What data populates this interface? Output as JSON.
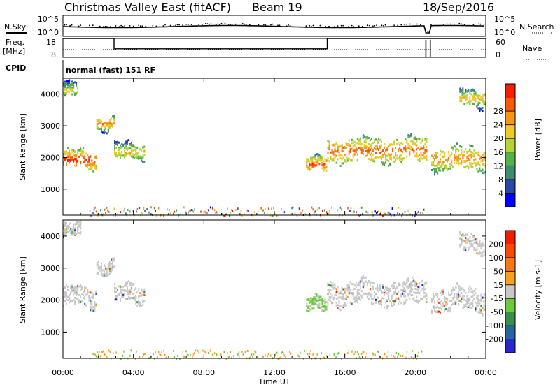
{
  "header": {
    "title": "Christmas Valley East (fitACF)",
    "beam": "Beam 19",
    "date": "18/Sep/2016"
  },
  "top_panels": {
    "nsky_label": "N.Sky",
    "nsearch_label": "N.Search",
    "noise_ticks": [
      "10^5",
      "10^0"
    ],
    "freq_label_1": "Freq.",
    "freq_label_2": "[MHz]",
    "freq_ticks": [
      "18",
      "8"
    ],
    "nave_label": "Nave",
    "nave_ticks": [
      "60",
      "0"
    ],
    "cpid_label": "CPID",
    "cpid_value": "normal (fast) 151 RF"
  },
  "power_panel": {
    "ylabel": "Slant Range [km]",
    "yticks": [
      "1000",
      "2000",
      "3000",
      "4000"
    ],
    "colorbar_label": "Power [dB]",
    "colorbar_ticks": [
      "4",
      "8",
      "12",
      "16",
      "20",
      "24",
      "28"
    ],
    "colorbar_colors": [
      "#0000ff",
      "#2a47a8",
      "#3c8c70",
      "#55b04c",
      "#b4d232",
      "#f0c828",
      "#f59614",
      "#f55a0a",
      "#f51e00"
    ]
  },
  "velocity_panel": {
    "ylabel": "Slant Range [km]",
    "yticks": [
      "1000",
      "2000",
      "3000",
      "4000"
    ],
    "colorbar_label": "Velocity [m s-1]",
    "colorbar_ticks": [
      "200",
      "100",
      "50",
      "15",
      "-15",
      "-50",
      "-100",
      "-200"
    ],
    "colorbar_colors": [
      "#2828c8",
      "#2a64a0",
      "#3c8c50",
      "#6ec83c",
      "#c8c8c8",
      "#f5a01e",
      "#f57814",
      "#f54a0a",
      "#f01e00"
    ]
  },
  "xaxis": {
    "label": "Time UT",
    "ticks": [
      "00:00",
      "04:00",
      "08:00",
      "12:00",
      "16:00",
      "20:00",
      "00:00"
    ]
  },
  "chart_data": [
    {
      "type": "heatmap",
      "name": "power",
      "xlabel": "Time UT",
      "ylabel": "Slant Range [km]",
      "xlim": [
        0,
        24
      ],
      "ylim": [
        180,
        4500
      ],
      "colorbar": {
        "label": "Power [dB]",
        "range": [
          0,
          32
        ]
      },
      "echo_regions": [
        {
          "t_start": 0.0,
          "t_end": 1.9,
          "range_center": 1950,
          "half_width": 250,
          "power": 24
        },
        {
          "t_start": 0.0,
          "t_end": 0.8,
          "range_center": 4150,
          "half_width": 220,
          "power": 12
        },
        {
          "t_start": 1.9,
          "t_end": 2.9,
          "range_center": 3100,
          "half_width": 180,
          "power": 18
        },
        {
          "t_start": 2.9,
          "t_end": 4.6,
          "range_center": 2200,
          "half_width": 250,
          "power": 14
        },
        {
          "t_start": 13.8,
          "t_end": 15.0,
          "range_center": 1800,
          "half_width": 200,
          "power": 22
        },
        {
          "t_start": 15.0,
          "t_end": 20.6,
          "range_center": 2250,
          "half_width": 350,
          "power": 20
        },
        {
          "t_start": 20.9,
          "t_end": 24.0,
          "range_center": 2000,
          "half_width": 350,
          "power": 18
        },
        {
          "t_start": 22.5,
          "t_end": 24.0,
          "range_center": 3900,
          "half_width": 250,
          "power": 14
        }
      ]
    },
    {
      "type": "heatmap",
      "name": "velocity",
      "xlabel": "Time UT",
      "ylabel": "Slant Range [km]",
      "xlim": [
        0,
        24
      ],
      "ylim": [
        180,
        4500
      ],
      "colorbar": {
        "label": "Velocity [m s-1]",
        "range": [
          -250,
          250
        ]
      },
      "echo_regions": [
        {
          "t_start": 0.0,
          "t_end": 1.9,
          "range_center": 2100,
          "half_width": 300,
          "velocity": 0
        },
        {
          "t_start": 0.0,
          "t_end": 1.0,
          "range_center": 4200,
          "half_width": 220,
          "velocity": 0
        },
        {
          "t_start": 1.9,
          "t_end": 2.9,
          "range_center": 3100,
          "half_width": 200,
          "velocity": 0
        },
        {
          "t_start": 2.9,
          "t_end": 4.6,
          "range_center": 2200,
          "half_width": 280,
          "velocity": 0
        },
        {
          "t_start": 13.8,
          "t_end": 15.0,
          "range_center": 1850,
          "half_width": 220,
          "velocity": 40
        },
        {
          "t_start": 15.0,
          "t_end": 20.6,
          "range_center": 2250,
          "half_width": 350,
          "velocity": 0
        },
        {
          "t_start": 20.9,
          "t_end": 24.0,
          "range_center": 2050,
          "half_width": 350,
          "velocity": 0
        },
        {
          "t_start": 22.5,
          "t_end": 24.0,
          "range_center": 3800,
          "half_width": 250,
          "velocity": 0
        }
      ]
    },
    {
      "type": "line",
      "name": "frequency",
      "ylabel": "Freq. [MHz]",
      "ylim": [
        8,
        18
      ],
      "series": [
        {
          "values_t": [
            0,
            2.9,
            2.9,
            15.0,
            15.0,
            24
          ],
          "values": [
            18,
            18,
            12.5,
            12.5,
            18,
            18
          ]
        }
      ]
    }
  ]
}
